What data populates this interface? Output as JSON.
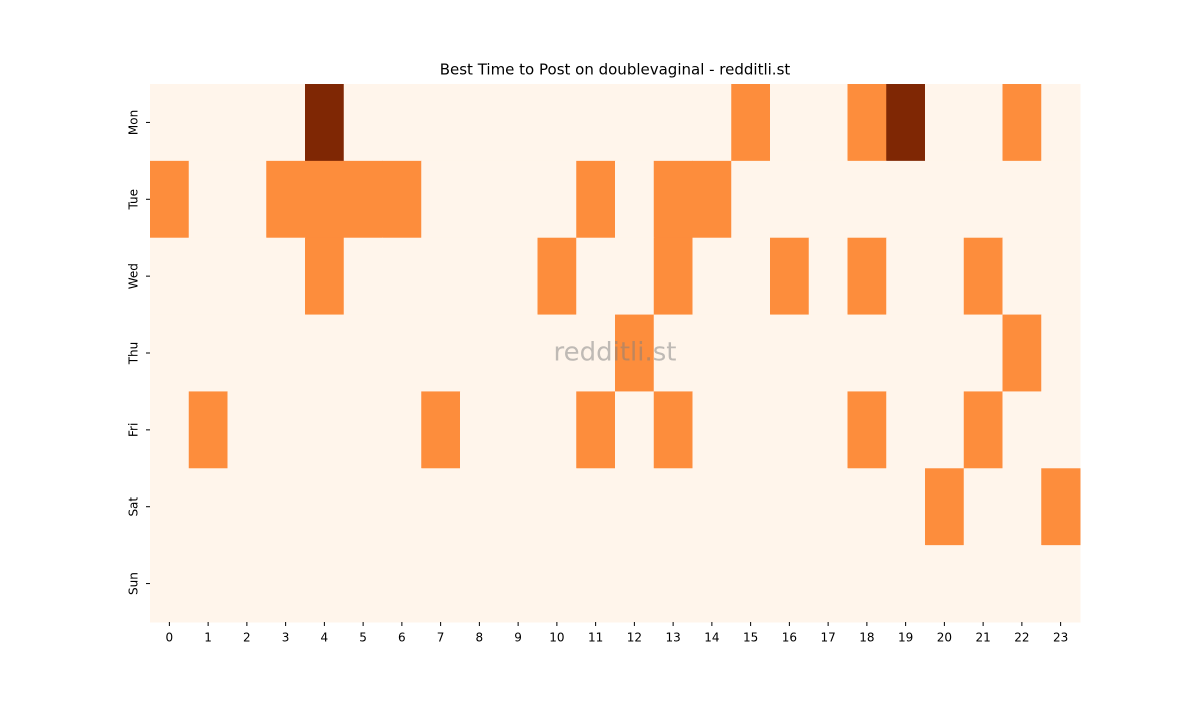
{
  "chart_data": {
    "type": "heatmap",
    "title": "Best Time to Post on doublevaginal - redditli.st",
    "watermark": "redditli.st",
    "x": [
      "0",
      "1",
      "2",
      "3",
      "4",
      "5",
      "6",
      "7",
      "8",
      "9",
      "10",
      "11",
      "12",
      "13",
      "14",
      "15",
      "16",
      "17",
      "18",
      "19",
      "20",
      "21",
      "22",
      "23"
    ],
    "y": [
      "Mon",
      "Tue",
      "Wed",
      "Thu",
      "Fri",
      "Sat",
      "Sun"
    ],
    "z": [
      [
        0,
        0,
        0,
        0,
        2,
        0,
        0,
        0,
        0,
        0,
        0,
        0,
        0,
        0,
        0,
        1,
        0,
        0,
        1,
        2,
        0,
        0,
        1,
        0
      ],
      [
        1,
        0,
        0,
        1,
        1,
        1,
        1,
        0,
        0,
        0,
        0,
        1,
        0,
        1,
        1,
        0,
        0,
        0,
        0,
        0,
        0,
        0,
        0,
        0
      ],
      [
        0,
        0,
        0,
        0,
        1,
        0,
        0,
        0,
        0,
        0,
        1,
        0,
        0,
        1,
        0,
        0,
        1,
        0,
        1,
        0,
        0,
        1,
        0,
        0
      ],
      [
        0,
        0,
        0,
        0,
        0,
        0,
        0,
        0,
        0,
        0,
        0,
        0,
        1,
        0,
        0,
        0,
        0,
        0,
        0,
        0,
        0,
        0,
        1,
        0
      ],
      [
        0,
        1,
        0,
        0,
        0,
        0,
        0,
        1,
        0,
        0,
        0,
        1,
        0,
        1,
        0,
        0,
        0,
        0,
        1,
        0,
        0,
        1,
        0,
        0
      ],
      [
        0,
        0,
        0,
        0,
        0,
        0,
        0,
        0,
        0,
        0,
        0,
        0,
        0,
        0,
        0,
        0,
        0,
        0,
        0,
        0,
        1,
        0,
        0,
        1
      ],
      [
        0,
        0,
        0,
        0,
        0,
        0,
        0,
        0,
        0,
        0,
        0,
        0,
        0,
        0,
        0,
        0,
        0,
        0,
        0,
        0,
        0,
        0,
        0,
        0
      ]
    ],
    "zlim": [
      0,
      2
    ],
    "colorscale": [
      "#fff5eb",
      "#fd8d3c",
      "#7f2704"
    ]
  }
}
